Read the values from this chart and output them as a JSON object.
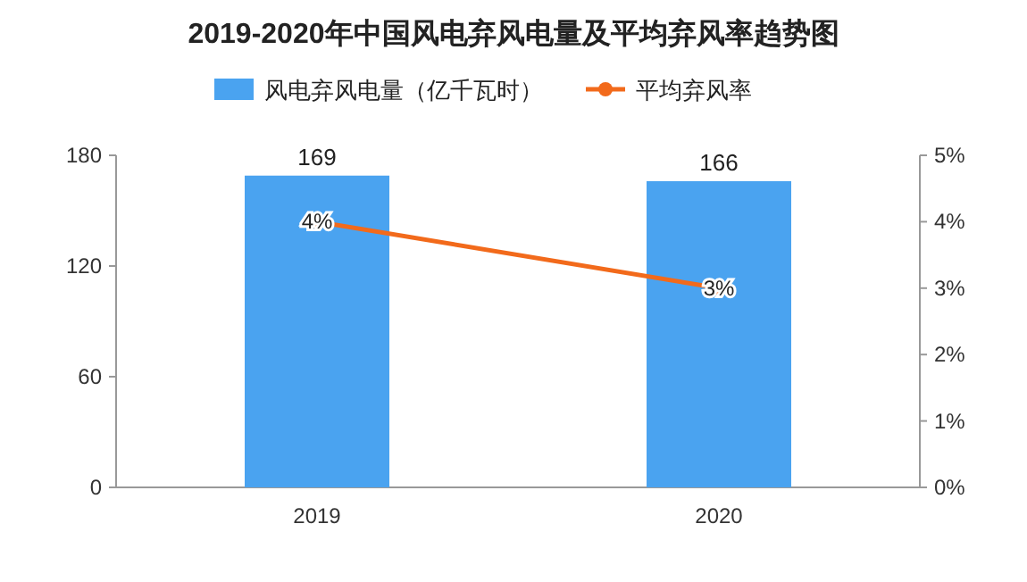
{
  "chart_data": {
    "type": "bar",
    "title": "2019-2020年中国风电弃风电量及平均弃风率趋势图",
    "categories": [
      "2019",
      "2020"
    ],
    "series": [
      {
        "name": "风电弃风电量（亿千瓦时）",
        "color": "#4aa3f0",
        "values": [
          169,
          166
        ],
        "value_labels": [
          "169",
          "166"
        ]
      },
      {
        "name": "平均弃风率",
        "type": "line",
        "axis": "y2",
        "color": "#f26a1b",
        "values": [
          4,
          3
        ],
        "value_labels": [
          "4%",
          "3%"
        ],
        "marker": "circle"
      }
    ],
    "ylim": [
      0,
      180
    ],
    "yticks": [
      0,
      60,
      120,
      180
    ],
    "y2lim": [
      0,
      5
    ],
    "y2ticks": [
      {
        "value": 0,
        "label": "0%"
      },
      {
        "value": 1,
        "label": "1%"
      },
      {
        "value": 2,
        "label": "2%"
      },
      {
        "value": 3,
        "label": "3%"
      },
      {
        "value": 4,
        "label": "4%"
      },
      {
        "value": 5,
        "label": "5%"
      }
    ],
    "legend": "top",
    "grid": false
  }
}
